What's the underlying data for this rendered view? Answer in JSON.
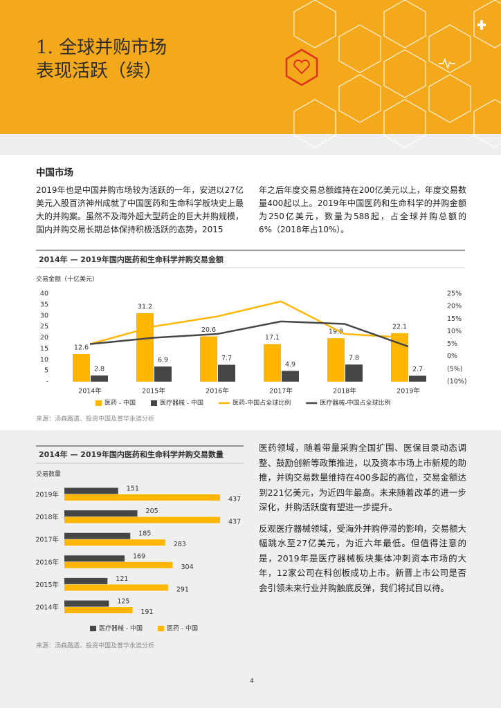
{
  "header": {
    "title": [
      "1. 全球并购市场",
      "表现活跃（续）"
    ]
  },
  "section": {
    "heading": "中国市场",
    "intro": [
      "2019年也是中国并购市场较为活跃的一年，安进以27亿美元入股百济神州成就了中国医药和生命科学板块史上最大的并购案。虽然不及海外超大型药企的巨大并购规模，国内并购交易长期总体保持积极活跃的态势，2015",
      "年之后年度交易总额维持在200亿美元以上，年度交易数量400起以上。2019年中国医药和生命科学的并购金额为250亿美元，数量为588起，占全球并购总额的6%（2018年占10%）。"
    ],
    "analysis": [
      "医药领域，随着带量采购全国扩围、医保目录动态调整、鼓励创新等政策推进，以及资本市场上市新规的助推，并购交易数量维持在400多起的高位，交易金额达到221亿美元，为近四年最高。未来随着改革的进一步深化，并购活跃度有望进一步提升。",
      "反观医疗器械领域，受海外并购停滞的影响，交易额大幅跳水至27亿美元，为近六年最低。但值得注意的是，2019年是医疗器械板块集体冲刺资本市场的大年，12家公司在科创板成功上市。新晋上市公司是否会引领未来行业并购触底反弹，我们将拭目以待。"
    ]
  },
  "chart_data": [
    {
      "type": "bar",
      "title": "2014年 — 2019年国内医药和生命科学并购交易金额",
      "y_label": "交易金额（十亿美元）",
      "categories": [
        "2014年",
        "2015年",
        "2016年",
        "2017年",
        "2018年",
        "2019年"
      ],
      "series": [
        {
          "name": "医药 - 中国",
          "color": "#ffb600",
          "values": [
            12.6,
            31.2,
            20.6,
            17.1,
            19.8,
            22.1
          ]
        },
        {
          "name": "医疗器械 - 中国",
          "color": "#464646",
          "values": [
            2.8,
            6.9,
            7.7,
            4.9,
            7.8,
            2.7
          ]
        },
        {
          "name": "医药-中国占全球比例",
          "color": "#ffb600",
          "type": "line",
          "axis": "y2",
          "values": [
            5,
            12,
            16,
            22,
            9,
            7.5
          ]
        },
        {
          "name": "医疗器械-中国占全球比例",
          "color": "#464646",
          "type": "line",
          "axis": "y2",
          "values": [
            5,
            7.5,
            9,
            14,
            13,
            4
          ]
        }
      ],
      "ylim": [
        0,
        40
      ],
      "yticks": [
        {
          "value": 0,
          "label": "-"
        },
        5,
        10,
        15,
        20,
        25,
        30,
        35,
        40
      ],
      "y2lim": [
        -10,
        25
      ],
      "y2ticks": [
        {
          "value": -10,
          "label": "(10%)"
        },
        {
          "value": -5,
          "label": "(5%)"
        },
        {
          "value": 0,
          "label": "0%"
        },
        {
          "value": 5,
          "label": "5%"
        },
        {
          "value": 10,
          "label": "10%"
        },
        {
          "value": 15,
          "label": "15%"
        },
        {
          "value": 20,
          "label": "20%"
        },
        {
          "value": 25,
          "label": "25%"
        }
      ],
      "grid": false,
      "source": "来源：汤森路透、投资中国及普华永道分析"
    },
    {
      "type": "barh",
      "title": "2014年 — 2019年国内医药和生命科学并购交易数量",
      "y_label": "交易数量",
      "categories": [
        "2019年",
        "2018年",
        "2017年",
        "2016年",
        "2015年",
        "2014年"
      ],
      "series": [
        {
          "name": "医疗器械 - 中国",
          "color": "#464646",
          "values": [
            151,
            205,
            185,
            169,
            121,
            125
          ]
        },
        {
          "name": "医药 - 中国",
          "color": "#ffb600",
          "values": [
            437,
            437,
            283,
            304,
            291,
            191
          ]
        }
      ],
      "source": "来源：汤森路透、投资中国及普华永道分析"
    }
  ],
  "page_number": "4"
}
